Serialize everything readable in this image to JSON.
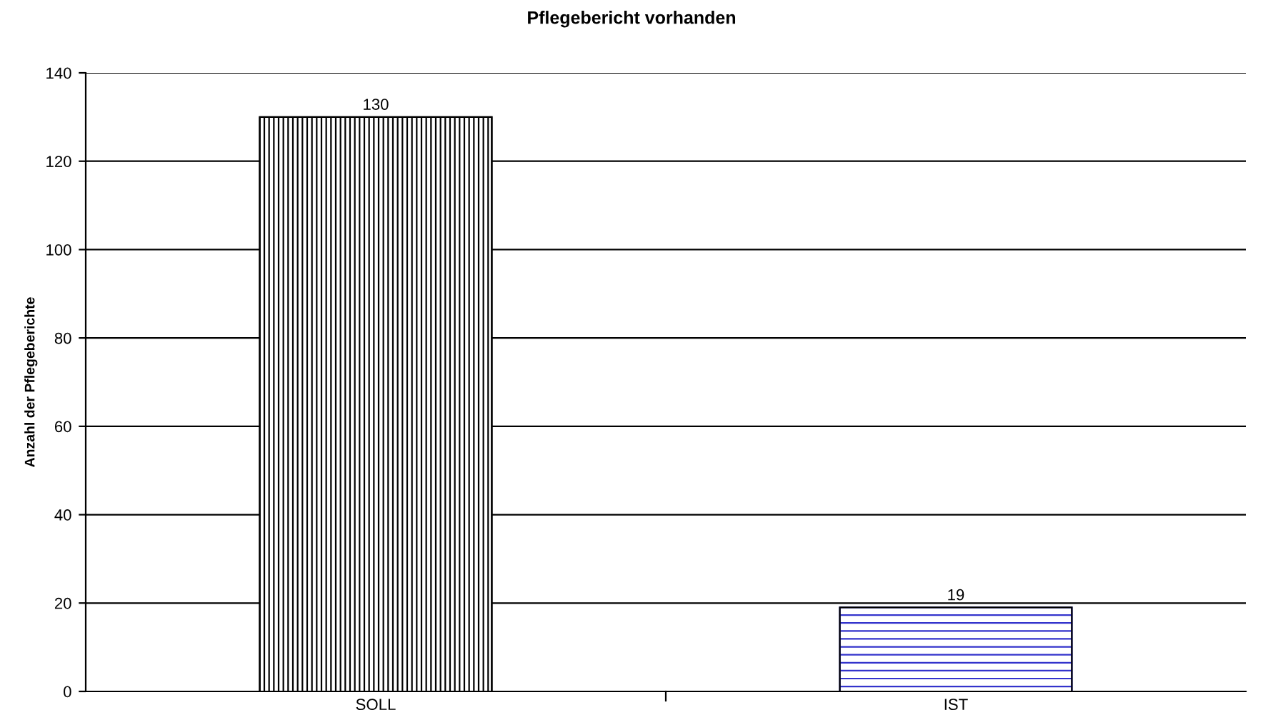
{
  "chart_data": {
    "type": "bar",
    "title": "Pflegebericht vorhanden",
    "ylabel": "Anzahl der Pflegeberichte",
    "categories": [
      "SOLL",
      "IST"
    ],
    "values": [
      130,
      19
    ],
    "colors": [
      "#000000",
      "#3333cc"
    ],
    "ylim": [
      0,
      140
    ],
    "yticks": [
      0,
      20,
      40,
      60,
      80,
      100,
      120,
      140
    ],
    "grid": "y",
    "data_labels": true,
    "legend": false
  }
}
